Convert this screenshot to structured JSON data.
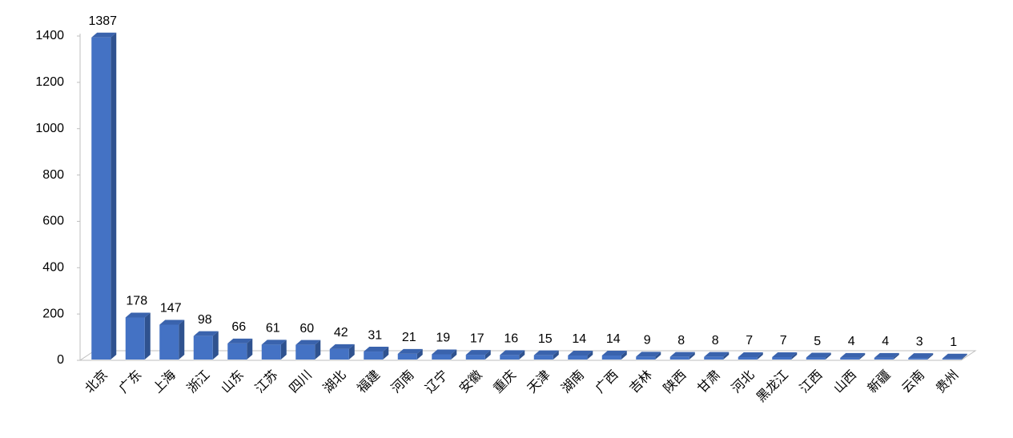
{
  "chart_data": {
    "type": "bar3d",
    "categories": [
      "北京",
      "广东",
      "上海",
      "浙江",
      "山东",
      "江苏",
      "四川",
      "湖北",
      "福建",
      "河南",
      "辽宁",
      "安徽",
      "重庆",
      "天津",
      "湖南",
      "广西",
      "吉林",
      "陕西",
      "甘肃",
      "河北",
      "黑龙江",
      "江西",
      "山西",
      "新疆",
      "云南",
      "贵州"
    ],
    "values": [
      1387,
      178,
      147,
      98,
      66,
      61,
      60,
      42,
      31,
      21,
      19,
      17,
      16,
      15,
      14,
      14,
      9,
      8,
      8,
      7,
      7,
      5,
      4,
      4,
      3,
      1
    ],
    "color": "#4472c4",
    "ylim": [
      0,
      1400
    ],
    "yticks": [
      0,
      200,
      400,
      600,
      800,
      1000,
      1200,
      1400
    ],
    "grid": false
  }
}
